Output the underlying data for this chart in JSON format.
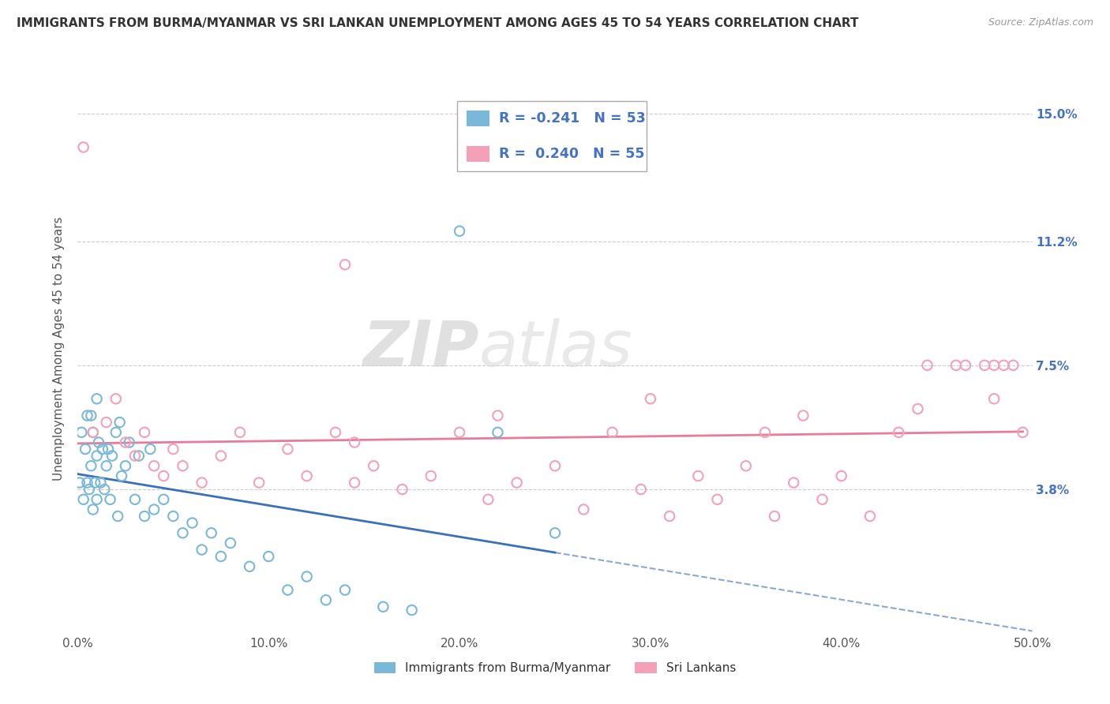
{
  "title": "IMMIGRANTS FROM BURMA/MYANMAR VS SRI LANKAN UNEMPLOYMENT AMONG AGES 45 TO 54 YEARS CORRELATION CHART",
  "source": "Source: ZipAtlas.com",
  "ylabel": "Unemployment Among Ages 45 to 54 years",
  "xlim": [
    0.0,
    50.0
  ],
  "ylim": [
    -0.5,
    16.5
  ],
  "ytick_vals": [
    0.0,
    3.8,
    7.5,
    11.2,
    15.0
  ],
  "ytick_labels": [
    "",
    "3.8%",
    "7.5%",
    "11.2%",
    "15.0%"
  ],
  "xtick_vals": [
    0.0,
    10.0,
    20.0,
    30.0,
    40.0,
    50.0
  ],
  "xtick_labels": [
    "0.0%",
    "10.0%",
    "20.0%",
    "30.0%",
    "40.0%",
    "50.0%"
  ],
  "grid_color": "#cccccc",
  "background_color": "#ffffff",
  "series1_color": "#7ab8d9",
  "series2_color": "#f4a0b8",
  "series1_label": "Immigrants from Burma/Myanmar",
  "series2_label": "Sri Lankans",
  "R1": -0.241,
  "N1": 53,
  "R2": 0.24,
  "N2": 55,
  "trend1_color": "#3a6fba",
  "trend2_color": "#e87a9a",
  "legend_box_color": "#4472c4",
  "series1_x": [
    0.1,
    0.2,
    0.3,
    0.4,
    0.5,
    0.5,
    0.6,
    0.7,
    0.7,
    0.8,
    0.8,
    0.9,
    1.0,
    1.0,
    1.0,
    1.1,
    1.2,
    1.3,
    1.4,
    1.5,
    1.6,
    1.7,
    1.8,
    2.0,
    2.1,
    2.2,
    2.3,
    2.5,
    2.7,
    3.0,
    3.2,
    3.5,
    3.8,
    4.0,
    4.5,
    5.0,
    5.5,
    6.0,
    6.5,
    7.0,
    7.5,
    8.0,
    9.0,
    10.0,
    11.0,
    12.0,
    13.0,
    14.0,
    16.0,
    17.5,
    20.0,
    22.0,
    25.0
  ],
  "series1_y": [
    4.0,
    5.5,
    3.5,
    5.0,
    4.0,
    6.0,
    3.8,
    4.5,
    6.0,
    3.2,
    5.5,
    4.0,
    4.8,
    3.5,
    6.5,
    5.2,
    4.0,
    5.0,
    3.8,
    4.5,
    5.0,
    3.5,
    4.8,
    5.5,
    3.0,
    5.8,
    4.2,
    4.5,
    5.2,
    3.5,
    4.8,
    3.0,
    5.0,
    3.2,
    3.5,
    3.0,
    2.5,
    2.8,
    2.0,
    2.5,
    1.8,
    2.2,
    1.5,
    1.8,
    0.8,
    1.2,
    0.5,
    0.8,
    0.3,
    0.2,
    11.5,
    5.5,
    2.5
  ],
  "series2_x": [
    0.3,
    0.8,
    1.5,
    2.0,
    2.5,
    3.0,
    3.5,
    4.0,
    4.5,
    5.0,
    5.5,
    6.5,
    7.5,
    8.5,
    9.5,
    11.0,
    12.0,
    13.5,
    14.5,
    15.5,
    17.0,
    18.5,
    20.0,
    21.5,
    23.0,
    25.0,
    26.5,
    28.0,
    29.5,
    31.0,
    32.5,
    33.5,
    35.0,
    36.5,
    37.5,
    39.0,
    40.0,
    41.5,
    43.0,
    44.5,
    46.0,
    47.5,
    48.5,
    49.5,
    14.0,
    22.0,
    30.0,
    38.0,
    44.0,
    36.0,
    48.0,
    46.5,
    48.0,
    49.0,
    14.5
  ],
  "series2_y": [
    14.0,
    5.5,
    5.8,
    6.5,
    5.2,
    4.8,
    5.5,
    4.5,
    4.2,
    5.0,
    4.5,
    4.0,
    4.8,
    5.5,
    4.0,
    5.0,
    4.2,
    5.5,
    4.0,
    4.5,
    3.8,
    4.2,
    5.5,
    3.5,
    4.0,
    4.5,
    3.2,
    5.5,
    3.8,
    3.0,
    4.2,
    3.5,
    4.5,
    3.0,
    4.0,
    3.5,
    4.2,
    3.0,
    5.5,
    7.5,
    7.5,
    7.5,
    7.5,
    5.5,
    10.5,
    6.0,
    6.5,
    6.0,
    6.2,
    5.5,
    6.5,
    7.5,
    7.5,
    7.5,
    5.2
  ]
}
